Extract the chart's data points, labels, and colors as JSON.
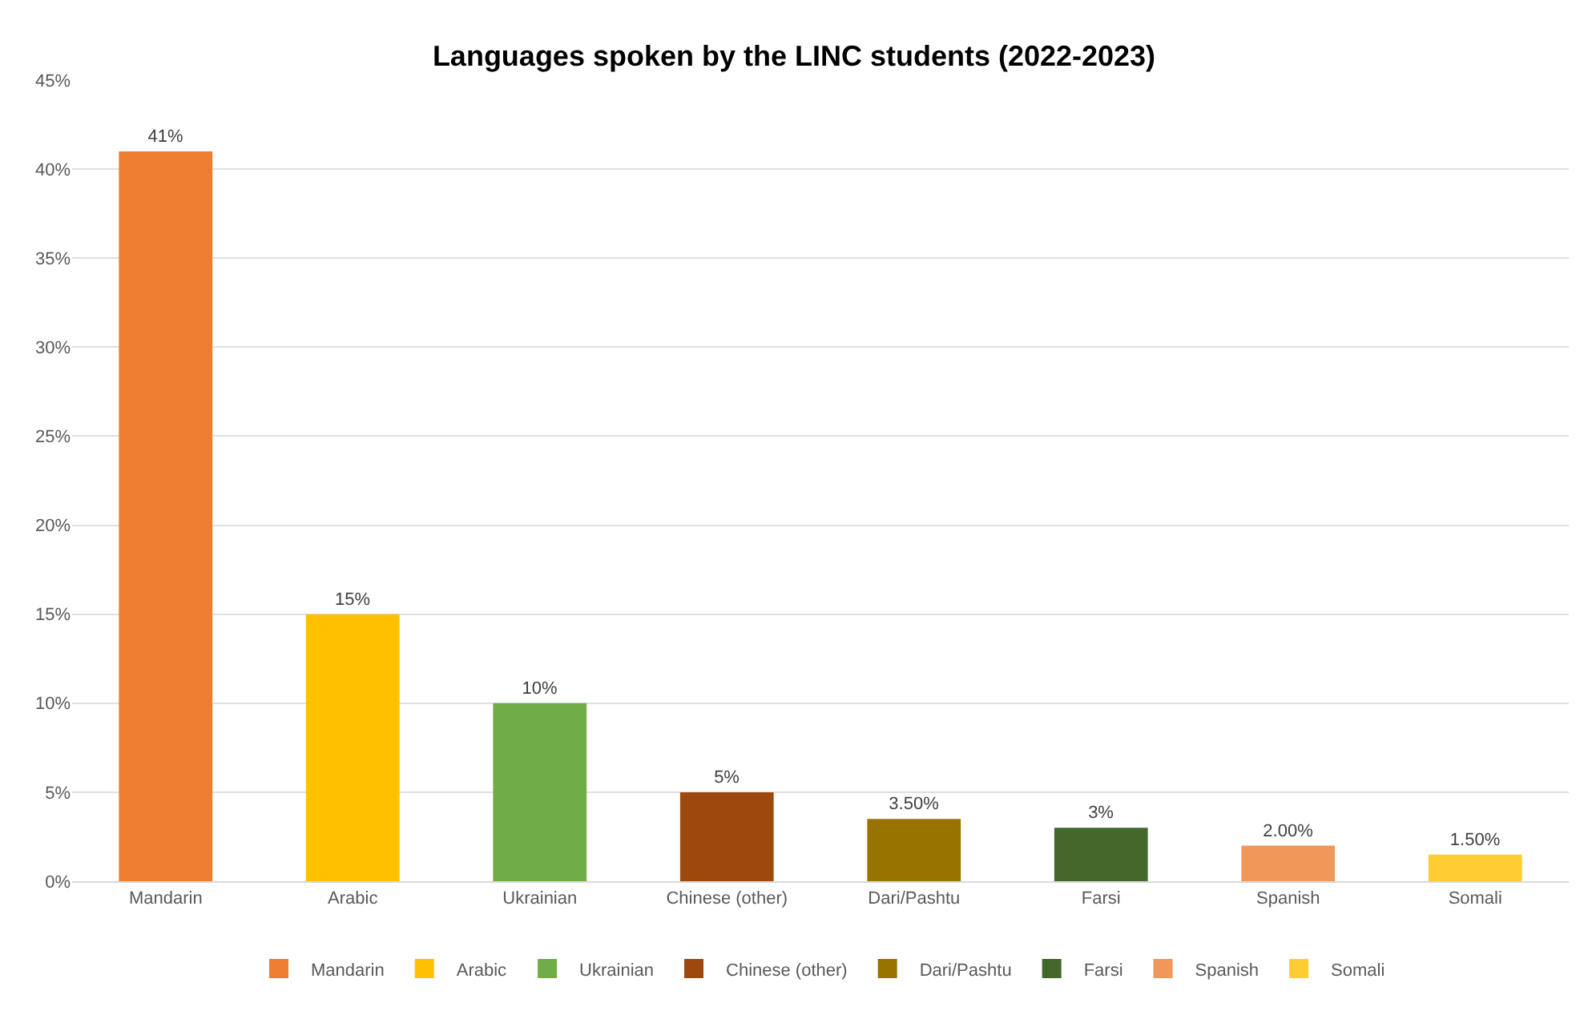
{
  "chart_data": {
    "type": "bar",
    "title": "Languages spoken by the LINC students (2022-2023)",
    "categories": [
      "Mandarin",
      "Arabic",
      "Ukrainian",
      "Chinese (other)",
      "Dari/Pashtu",
      "Farsi",
      "Spanish",
      "Somali"
    ],
    "series": [
      {
        "name": "Mandarin",
        "color": "#ed7d31",
        "values": [
          41,
          null,
          null,
          null,
          null,
          null,
          null,
          null
        ],
        "value_labels": [
          "41%",
          null,
          null,
          null,
          null,
          null,
          null,
          null
        ]
      },
      {
        "name": "Arabic",
        "color": "#ffc000",
        "values": [
          null,
          15,
          null,
          null,
          null,
          null,
          null,
          null
        ],
        "value_labels": [
          null,
          "15%",
          null,
          null,
          null,
          null,
          null,
          null
        ]
      },
      {
        "name": "Ukrainian",
        "color": "#70ad47",
        "values": [
          null,
          null,
          10,
          null,
          null,
          null,
          null,
          null
        ],
        "value_labels": [
          null,
          null,
          "10%",
          null,
          null,
          null,
          null,
          null
        ]
      },
      {
        "name": "Chinese (other)",
        "color": "#9e480e",
        "values": [
          null,
          null,
          null,
          5,
          null,
          null,
          null,
          null
        ],
        "value_labels": [
          null,
          null,
          null,
          "5%",
          null,
          null,
          null,
          null
        ]
      },
      {
        "name": "Dari/Pashtu",
        "color": "#997300",
        "values": [
          null,
          null,
          null,
          null,
          3.5,
          null,
          null,
          null
        ],
        "value_labels": [
          null,
          null,
          null,
          null,
          "3.50%",
          null,
          null,
          null
        ]
      },
      {
        "name": "Farsi",
        "color": "#43682b",
        "values": [
          null,
          null,
          null,
          null,
          null,
          3,
          null,
          null
        ],
        "value_labels": [
          null,
          null,
          null,
          null,
          null,
          "3%",
          null,
          null
        ]
      },
      {
        "name": "Spanish",
        "color": "#f1975a",
        "values": [
          null,
          null,
          null,
          null,
          null,
          null,
          2,
          null
        ],
        "value_labels": [
          null,
          null,
          null,
          null,
          null,
          null,
          "2.00%",
          null
        ]
      },
      {
        "name": "Somali",
        "color": "#ffcd33",
        "values": [
          null,
          null,
          null,
          null,
          null,
          null,
          null,
          1.5
        ],
        "value_labels": [
          null,
          null,
          null,
          null,
          null,
          null,
          null,
          "1.50%"
        ]
      }
    ],
    "ylim": [
      0,
      45
    ],
    "yticks": [
      {
        "value": 0,
        "label": "0%"
      },
      {
        "value": 5,
        "label": "5%"
      },
      {
        "value": 10,
        "label": "10%"
      },
      {
        "value": 15,
        "label": "15%"
      },
      {
        "value": 20,
        "label": "20%"
      },
      {
        "value": 25,
        "label": "25%"
      },
      {
        "value": 30,
        "label": "30%"
      },
      {
        "value": 35,
        "label": "35%"
      },
      {
        "value": 40,
        "label": "40%"
      },
      {
        "value": 45,
        "label": "45%"
      }
    ],
    "grid": "y",
    "legend": "bottom"
  }
}
